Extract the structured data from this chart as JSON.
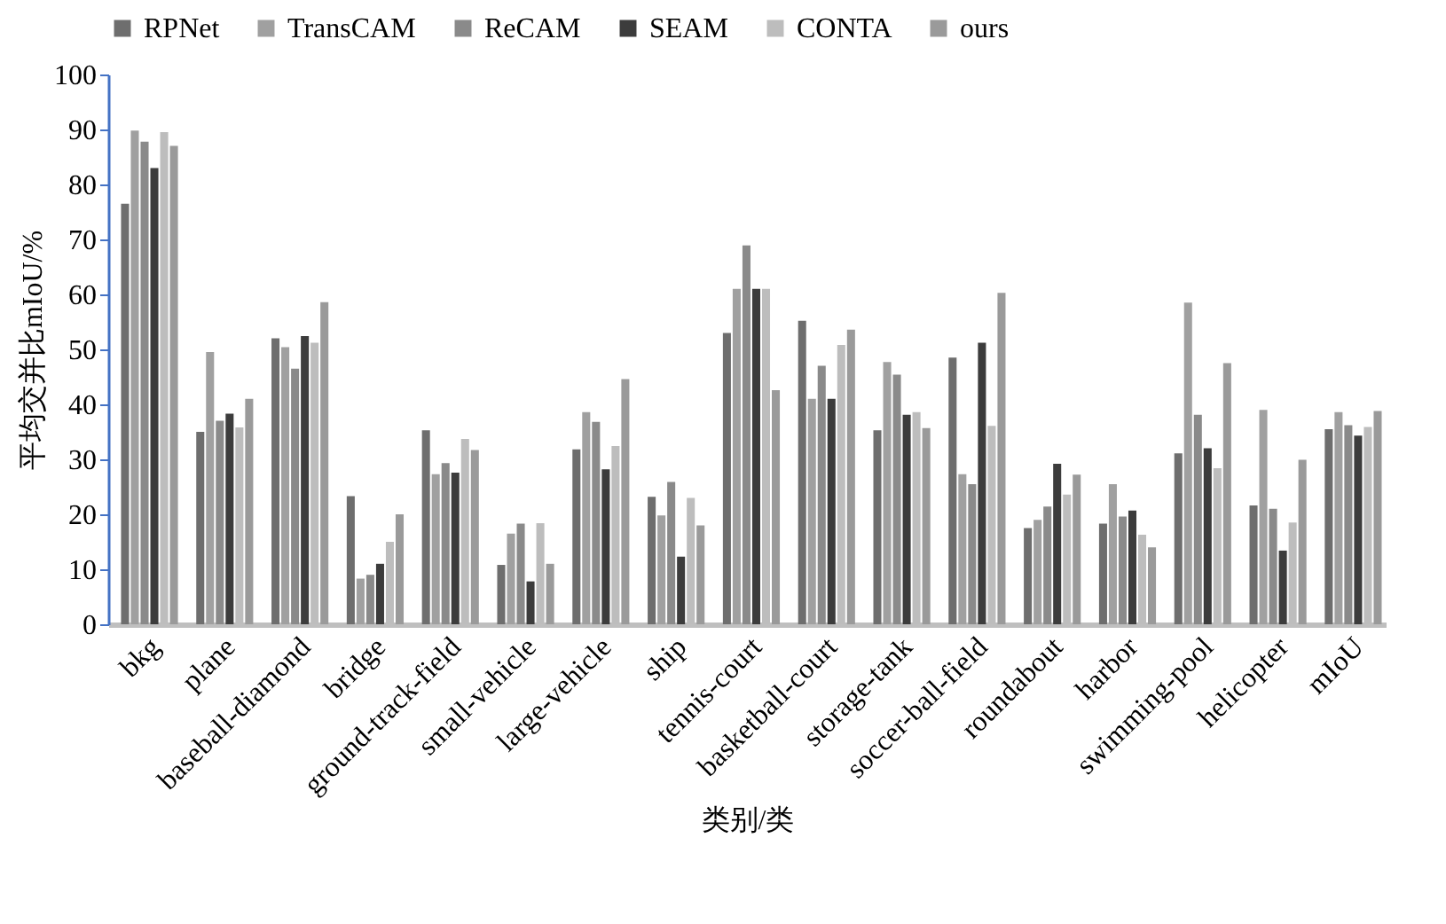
{
  "chart_data": {
    "type": "bar",
    "xlabel": "类别/类",
    "ylabel": "平均交并比mIoU/%",
    "categories": [
      "bkg",
      "plane",
      "baseball-diamond",
      "bridge",
      "ground-track-field",
      "small-vehicle",
      "large-vehicle",
      "ship",
      "tennis-court",
      "basketball-court",
      "storage-tank",
      "soccer-ball-field",
      "roundabout",
      "harbor",
      "swimming-pool",
      "helicopter",
      "mIoU"
    ],
    "series": [
      {
        "name": "RPNet",
        "color": "#6e6e6e",
        "values": [
          76.5,
          35,
          52,
          23.3,
          35.3,
          10.8,
          31.8,
          23.2,
          53,
          55.2,
          35.3,
          48.5,
          17.5,
          18.3,
          31.1,
          21.6,
          35.5
        ]
      },
      {
        "name": "TransCAM",
        "color": "#a0a0a0",
        "values": [
          89.8,
          49.5,
          50.4,
          8.3,
          27.3,
          16.5,
          38.6,
          19.8,
          61,
          41,
          47.7,
          27.3,
          19,
          25.5,
          58.5,
          39,
          38.6
        ]
      },
      {
        "name": "ReCAM",
        "color": "#8a8a8a",
        "values": [
          87.8,
          37,
          46.5,
          9,
          29.3,
          18.3,
          36.8,
          25.9,
          68.9,
          47,
          45.4,
          25.5,
          21.4,
          19.6,
          38.1,
          21,
          36.2
        ]
      },
      {
        "name": "SEAM",
        "color": "#3c3c3c",
        "values": [
          83,
          38.3,
          52.4,
          11,
          27.6,
          7.8,
          28.2,
          12.3,
          61,
          41,
          38.1,
          51.2,
          29.2,
          20.7,
          32,
          13.4,
          34.3
        ]
      },
      {
        "name": "CONTA",
        "color": "#bdbdbd",
        "values": [
          89.5,
          35.8,
          51.2,
          15,
          33.7,
          18.4,
          32.4,
          23,
          61,
          50.8,
          38.6,
          36.1,
          23.6,
          16.3,
          28.4,
          18.5,
          35.9
        ]
      },
      {
        "name": "ours",
        "color": "#9a9a9a",
        "values": [
          87,
          41,
          58.6,
          20,
          31.7,
          11,
          44.6,
          18,
          42.6,
          53.6,
          35.7,
          60.3,
          27.2,
          14,
          47.5,
          29.9,
          38.8
        ]
      }
    ],
    "ylim": [
      0,
      100
    ],
    "yticks": [
      0,
      10,
      20,
      30,
      40,
      50,
      60,
      70,
      80,
      90,
      100
    ],
    "grid": false,
    "legend": "top"
  }
}
